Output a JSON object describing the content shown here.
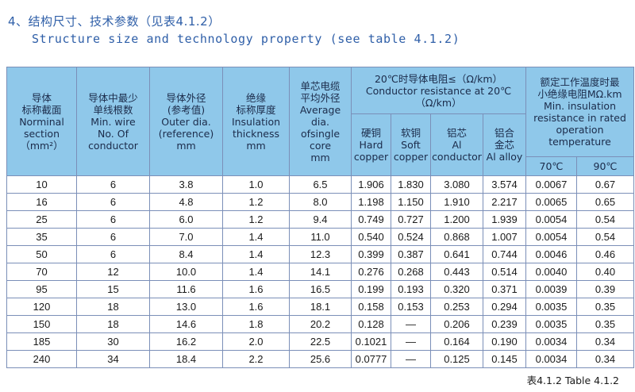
{
  "title": {
    "cn": "4、结构尺寸、技术参数（见表4.1.2）",
    "en": "Structure size and technology property (see table 4.1.2)"
  },
  "headers": {
    "section": "导体\n标称截面\nNorminal\nsection\n（mm²）",
    "min_wire": "导体中最少\n单线根数\nMin. wire\nNo. Of\nconductor",
    "outer_dia": "导体外径\n(参考值)\nOuter dia.\n(reference)\nmm",
    "insulation": "绝缘\n标称厚度\nInsulation\nthickness\nmm",
    "avg_dia": "单芯电缆\n平均外径\nAverage\ndia.\nofsingle\ncore\nmm",
    "resistance": "20℃时导体电阻≤（Ω/km）\nConductor resistance at 20℃\n（Ω/km）",
    "hard_copper": "硬铜\nHard\ncopper",
    "soft_copper": "软铜\nSoft\ncopper",
    "al_conductor": "铝芯\nAl\nconductor",
    "al_alloy": "铝合\n金芯\nAl alloy",
    "insulation_res": "额定工作温度时最\n小绝缘电阻MΩ.km\nMin. insulation\nresistance in rated\noperation\ntemperature",
    "temp_70": "70℃",
    "temp_90": "90℃"
  },
  "rows": [
    [
      "10",
      "6",
      "3.8",
      "1.0",
      "6.5",
      "1.906",
      "1.830",
      "3.080",
      "3.574",
      "0.0067",
      "0.67"
    ],
    [
      "16",
      "6",
      "4.8",
      "1.2",
      "8.0",
      "1.198",
      "1.150",
      "1.910",
      "2.217",
      "0.0065",
      "0.65"
    ],
    [
      "25",
      "6",
      "6.0",
      "1.2",
      "9.4",
      "0.749",
      "0.727",
      "1.200",
      "1.939",
      "0.0054",
      "0.54"
    ],
    [
      "35",
      "6",
      "7.0",
      "1.4",
      "11.0",
      "0.540",
      "0.524",
      "0.868",
      "1.007",
      "0.0054",
      "0.54"
    ],
    [
      "50",
      "6",
      "8.4",
      "1.4",
      "12.3",
      "0.399",
      "0.387",
      "0.641",
      "0.744",
      "0.0046",
      "0.46"
    ],
    [
      "70",
      "12",
      "10.0",
      "1.4",
      "14.1",
      "0.276",
      "0.268",
      "0.443",
      "0.514",
      "0.0040",
      "0.40"
    ],
    [
      "95",
      "15",
      "11.6",
      "1.6",
      "16.5",
      "0.199",
      "0.193",
      "0.320",
      "0.371",
      "0.0039",
      "0.39"
    ],
    [
      "120",
      "18",
      "13.0",
      "1.6",
      "18.1",
      "0.158",
      "0.153",
      "0.253",
      "0.294",
      "0.0035",
      "0.35"
    ],
    [
      "150",
      "18",
      "14.6",
      "1.8",
      "20.2",
      "0.128",
      "—",
      "0.206",
      "0.239",
      "0.0035",
      "0.35"
    ],
    [
      "185",
      "30",
      "16.2",
      "2.0",
      "22.5",
      "0.1021",
      "—",
      "0.164",
      "0.190",
      "0.0034",
      "0.34"
    ],
    [
      "240",
      "34",
      "18.4",
      "2.2",
      "25.6",
      "0.0777",
      "—",
      "0.125",
      "0.145",
      "0.0034",
      "0.34"
    ]
  ],
  "caption": "表4.1.2 Table 4.1.2"
}
